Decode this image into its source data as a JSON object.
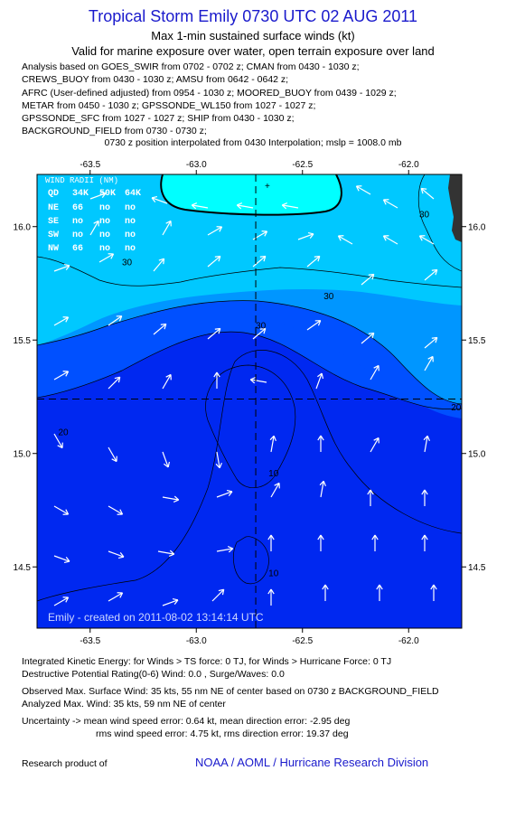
{
  "header": {
    "title": "Tropical Storm Emily 0730 UTC 02 AUG 2011",
    "subtitle1": "Max 1-min sustained surface winds (kt)",
    "subtitle2": "Valid for marine exposure over water, open terrain exposure over land"
  },
  "analysis_lines": [
    "Analysis based on GOES_SWIR from 0702 - 0702 z; CMAN from 0430 - 1030 z;",
    "CREWS_BUOY from 0430 - 1030 z; AMSU from 0642 - 0642 z;",
    "AFRC (User-defined adjusted) from 0954 - 1030 z; MOORED_BUOY from 0439 - 1029 z;",
    "METAR from 0450 - 1030 z; GPSSONDE_WL150 from 1027 - 1027 z;",
    "GPSSONDE_SFC from 1027 - 1027 z; SHIP from 0430 - 1030 z;",
    "BACKGROUND_FIELD from 0730 - 0730 z;"
  ],
  "interpolation_note": "0730 z position interpolated from 0430 Interpolation; mslp = 1008.0 mb",
  "chart_data": {
    "type": "contour",
    "xlim": [
      -63.75,
      -61.75
    ],
    "ylim": [
      14.23,
      16.23
    ],
    "x_ticks": [
      -63.5,
      -63.0,
      -62.5,
      -62.0
    ],
    "x_tick_labels": [
      "-63.5",
      "-63.0",
      "-62.5",
      "-62.0"
    ],
    "y_ticks": [
      14.5,
      15.0,
      15.5,
      16.0
    ],
    "y_tick_labels": [
      "14.5",
      "15.0",
      "15.5",
      "16.0"
    ],
    "storm_center": {
      "lon": -62.72,
      "lat": 15.24
    },
    "contour_labels": [
      {
        "text": "30",
        "lon": -63.35,
        "lat": 15.83
      },
      {
        "text": "30",
        "lon": -62.4,
        "lat": 15.68
      },
      {
        "text": "30",
        "lon": -62.72,
        "lat": 15.55
      },
      {
        "text": "30",
        "lon": -61.95,
        "lat": 16.04
      },
      {
        "text": "20",
        "lon": -63.65,
        "lat": 15.08
      },
      {
        "text": "20",
        "lon": -61.8,
        "lat": 15.19
      },
      {
        "text": "10",
        "lon": -62.66,
        "lat": 14.9
      },
      {
        "text": "10",
        "lon": -62.66,
        "lat": 14.46
      }
    ],
    "wind_radii_table": {
      "title": "WIND RADII (NM)",
      "headers": [
        "QD",
        "34K",
        "50K",
        "64K"
      ],
      "rows": [
        [
          "NE",
          "66",
          "no",
          "no"
        ],
        [
          "SE",
          "no",
          "no",
          "no"
        ],
        [
          "SW",
          "no",
          "no",
          "no"
        ],
        [
          "NW",
          "66",
          "no",
          "no"
        ]
      ]
    },
    "watermark": "Emily - created on 2011-08-02 13:14:14 UTC",
    "colors": {
      "band_high": "#00ffff",
      "band_30": "#00c8ff",
      "band_20": "#0096ff",
      "band_10": "#0050ff",
      "band_low": "#0028f0",
      "land": "#333333"
    }
  },
  "footer": {
    "ike": "Integrated Kinetic Energy:  for Winds > TS force: 0 TJ,  for Winds > Hurricane Force: 0 TJ",
    "dpr": "Destructive Potential Rating(0-6)   Wind: 0.0 , Surge/Waves: 0.0",
    "observed": "Observed Max. Surface Wind: 35 kts, 55 nm NE of center based on 0730 z BACKGROUND_FIELD",
    "analyzed": "Analyzed Max. Wind: 35 kts, 59 nm NE of center",
    "uncertainty1": "Uncertainty -> mean wind speed error: 0.64 kt,   mean direction error:  -2.95 deg",
    "uncertainty2": "rms wind speed error: 4.75 kt,   rms direction error: 19.37 deg",
    "research_label": "Research product of",
    "credit": "NOAA / AOML / Hurricane Research Division"
  }
}
